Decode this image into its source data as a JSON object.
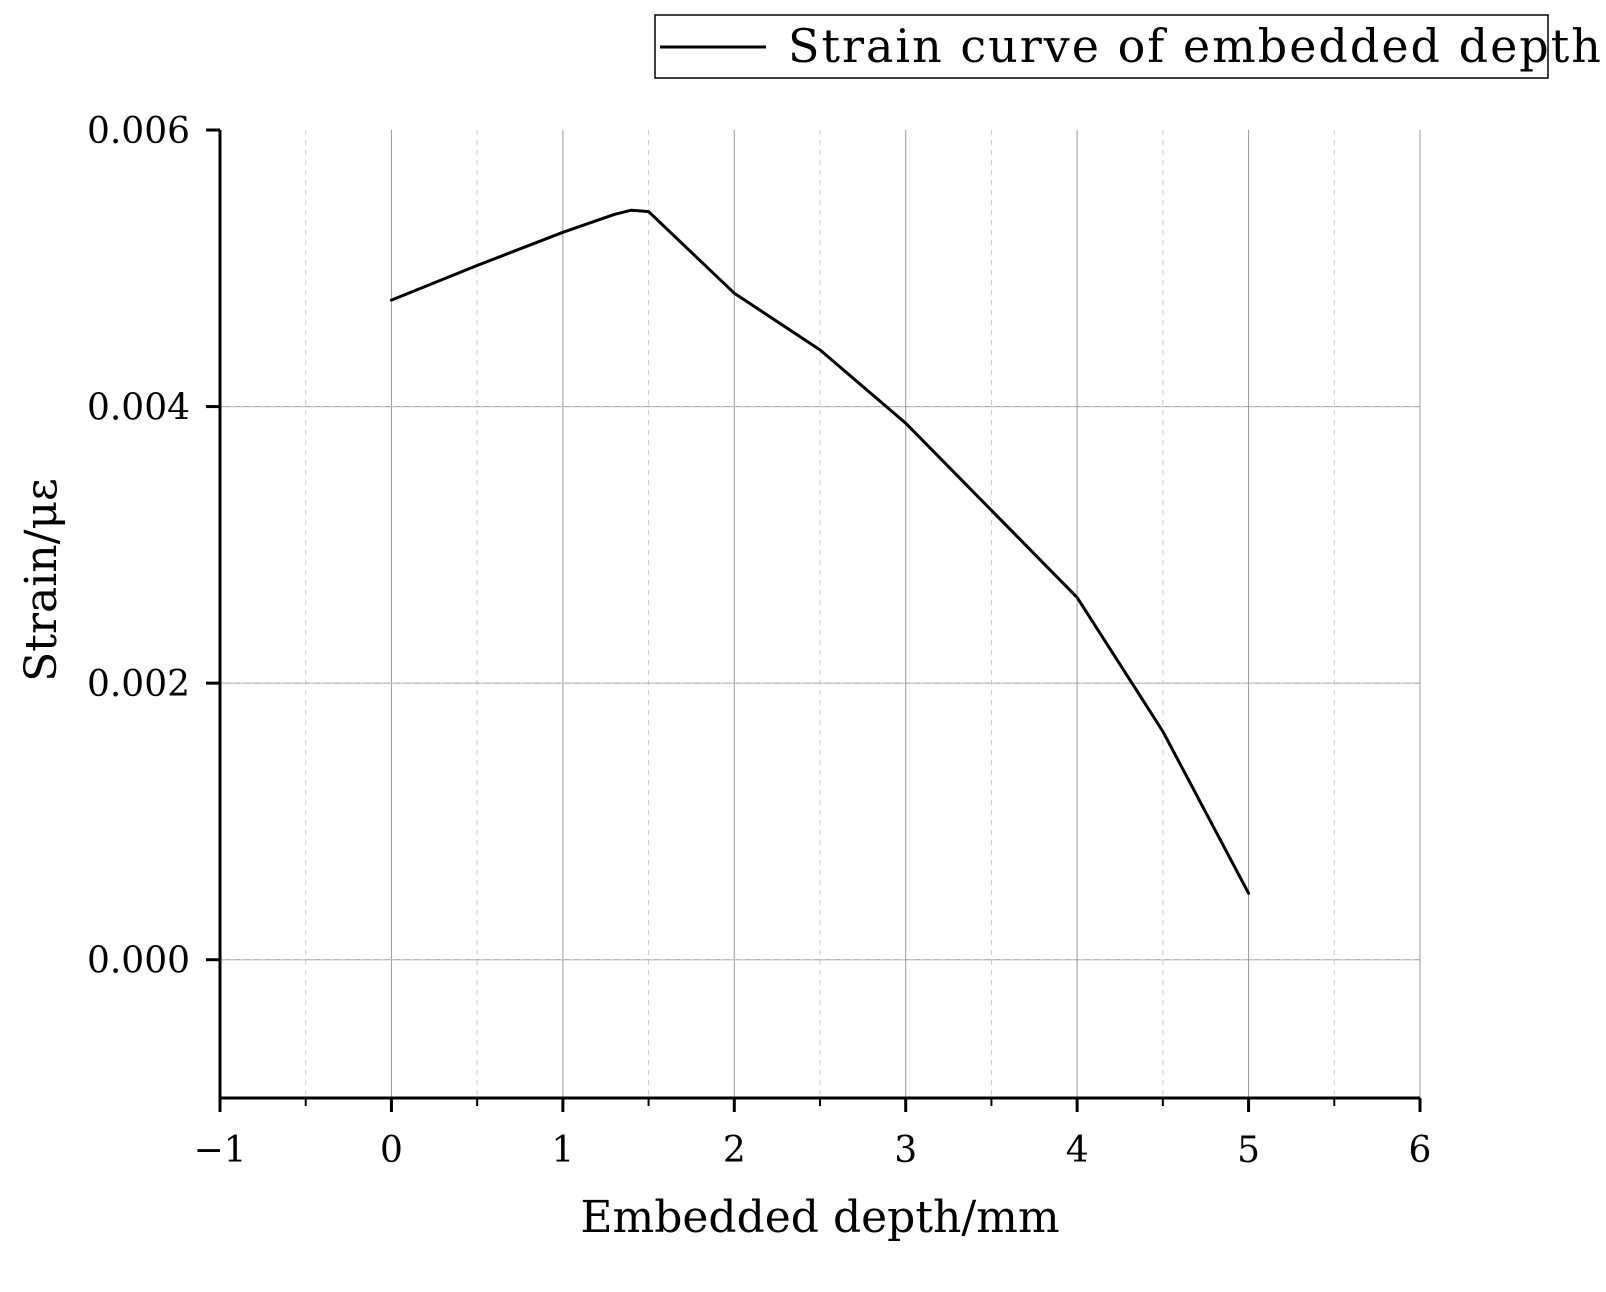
{
  "chart_data": {
    "type": "line",
    "title": "",
    "xlabel": "Embedded depth/mm",
    "ylabel": "Strain/με",
    "xlim": [
      -1,
      6
    ],
    "ylim": [
      -0.001,
      0.006
    ],
    "xticks": [
      -1,
      0,
      1,
      2,
      3,
      4,
      5,
      6
    ],
    "xtick_labels": [
      "−1",
      "0",
      "1",
      "2",
      "3",
      "4",
      "5",
      "6"
    ],
    "yticks": [
      0.0,
      0.002,
      0.004,
      0.006
    ],
    "ytick_labels": [
      "0.000",
      "0.002",
      "0.004",
      "0.006"
    ],
    "grid": true,
    "legend_position": "top-right",
    "series": [
      {
        "name": "Strain curve of embedded depth",
        "color": "#000000",
        "x": [
          0,
          0.5,
          1.0,
          1.3,
          1.4,
          1.5,
          2.0,
          2.5,
          3.0,
          3.5,
          4.0,
          4.5,
          5.0
        ],
        "values": [
          0.00477,
          0.00502,
          0.00526,
          0.00539,
          0.00542,
          0.00541,
          0.00482,
          0.00441,
          0.00388,
          0.00325,
          0.00262,
          0.00165,
          0.00048
        ]
      }
    ]
  }
}
